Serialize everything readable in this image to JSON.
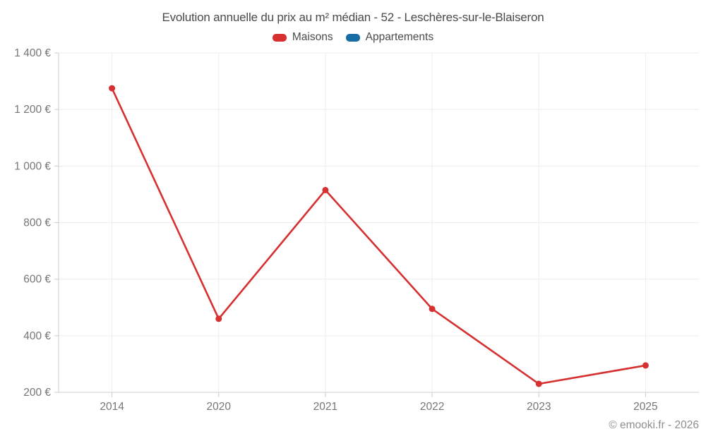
{
  "chart_data": {
    "type": "line",
    "title": "Evolution annuelle du prix au m² médian - 52 - Leschères-sur-le-Blaiseron",
    "categories": [
      "2014",
      "2020",
      "2021",
      "2022",
      "2023",
      "2025"
    ],
    "series": [
      {
        "name": "Maisons",
        "color": "#d63031",
        "values": [
          1275,
          460,
          915,
          495,
          230,
          295
        ]
      },
      {
        "name": "Appartements",
        "color": "#1a6ca4",
        "values": []
      }
    ],
    "ylim": [
      200,
      1400
    ],
    "yticks": [
      {
        "value": 200,
        "label": "200 €"
      },
      {
        "value": 400,
        "label": "400 €"
      },
      {
        "value": 600,
        "label": "600 €"
      },
      {
        "value": 800,
        "label": "800 €"
      },
      {
        "value": 1000,
        "label": "1 000 €"
      },
      {
        "value": 1200,
        "label": "1 200 €"
      },
      {
        "value": 1400,
        "label": "1 400 €"
      }
    ],
    "legend_position": "top",
    "grid": true,
    "colors": {
      "grid": "#ededed",
      "axis": "#cccccc",
      "tick_text": "#767676"
    }
  },
  "footer": {
    "copyright": "© emooki.fr - 2026"
  }
}
